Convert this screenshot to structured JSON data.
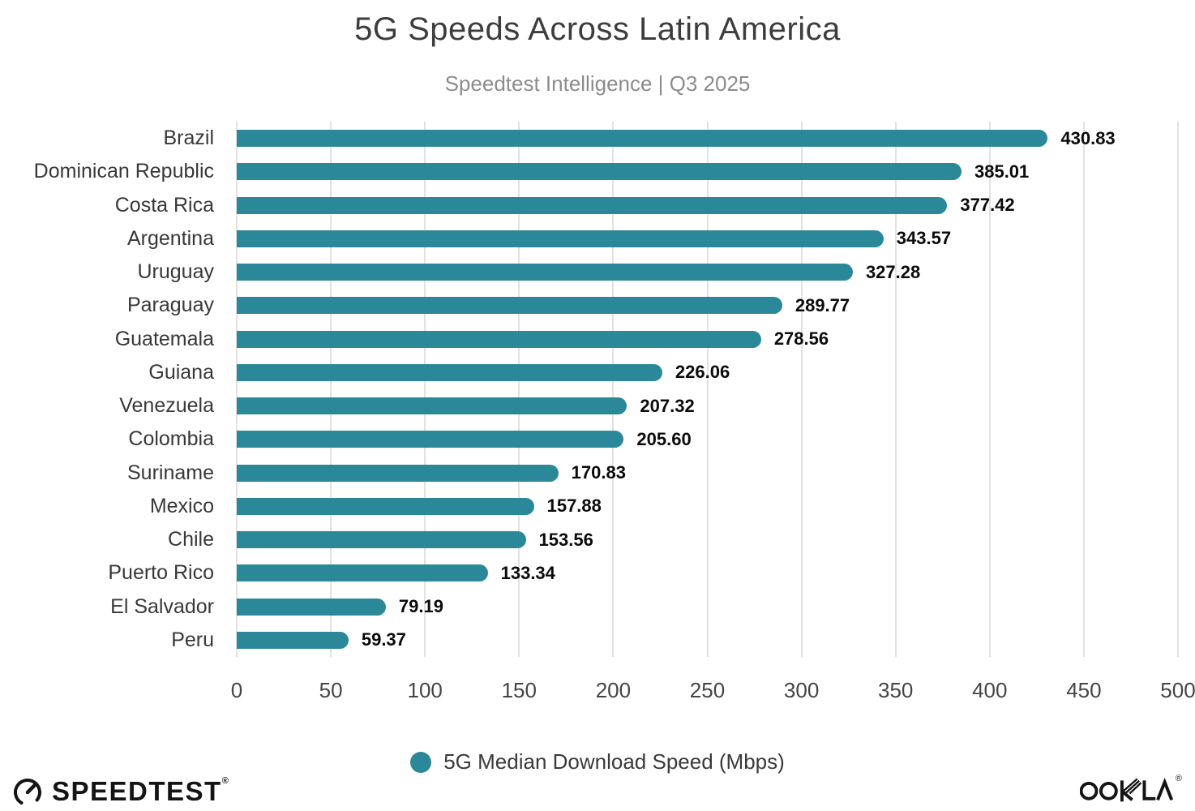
{
  "title": "5G Speeds Across Latin America",
  "subtitle": "Speedtest Intelligence | Q3 2025",
  "chart_data": {
    "type": "bar",
    "orientation": "horizontal",
    "title": "5G Speeds Across Latin America",
    "subtitle": "Speedtest Intelligence | Q3 2025",
    "categories": [
      "Brazil",
      "Dominican Republic",
      "Costa Rica",
      "Argentina",
      "Uruguay",
      "Paraguay",
      "Guatemala",
      "Guiana",
      "Venezuela",
      "Colombia",
      "Suriname",
      "Mexico",
      "Chile",
      "Puerto Rico",
      "El Salvador",
      "Peru"
    ],
    "values": [
      430.83,
      385.01,
      377.42,
      343.57,
      327.28,
      289.77,
      278.56,
      226.06,
      207.32,
      205.6,
      170.83,
      157.88,
      153.56,
      133.34,
      79.19,
      59.37
    ],
    "series_name": "5G Median Download Speed (Mbps)",
    "xlabel": "",
    "ylabel": "",
    "xlim": [
      0,
      500
    ],
    "x_ticks": [
      0,
      50,
      100,
      150,
      200,
      250,
      300,
      350,
      400,
      450,
      500
    ],
    "grid": true,
    "value_decimals": 2,
    "legend_position": "bottom",
    "bar_color": "#2b8899",
    "gridline_color": "#e2e2e2"
  },
  "legend": {
    "label": "5G Median Download Speed (Mbps)",
    "dot_color": "#2b8899"
  },
  "footer": {
    "speedtest_logo_text": "SPEEDTEST",
    "speedtest_reg_mark": "®",
    "ookla_logo_text": "OOKLA",
    "ookla_reg_mark": "®"
  }
}
